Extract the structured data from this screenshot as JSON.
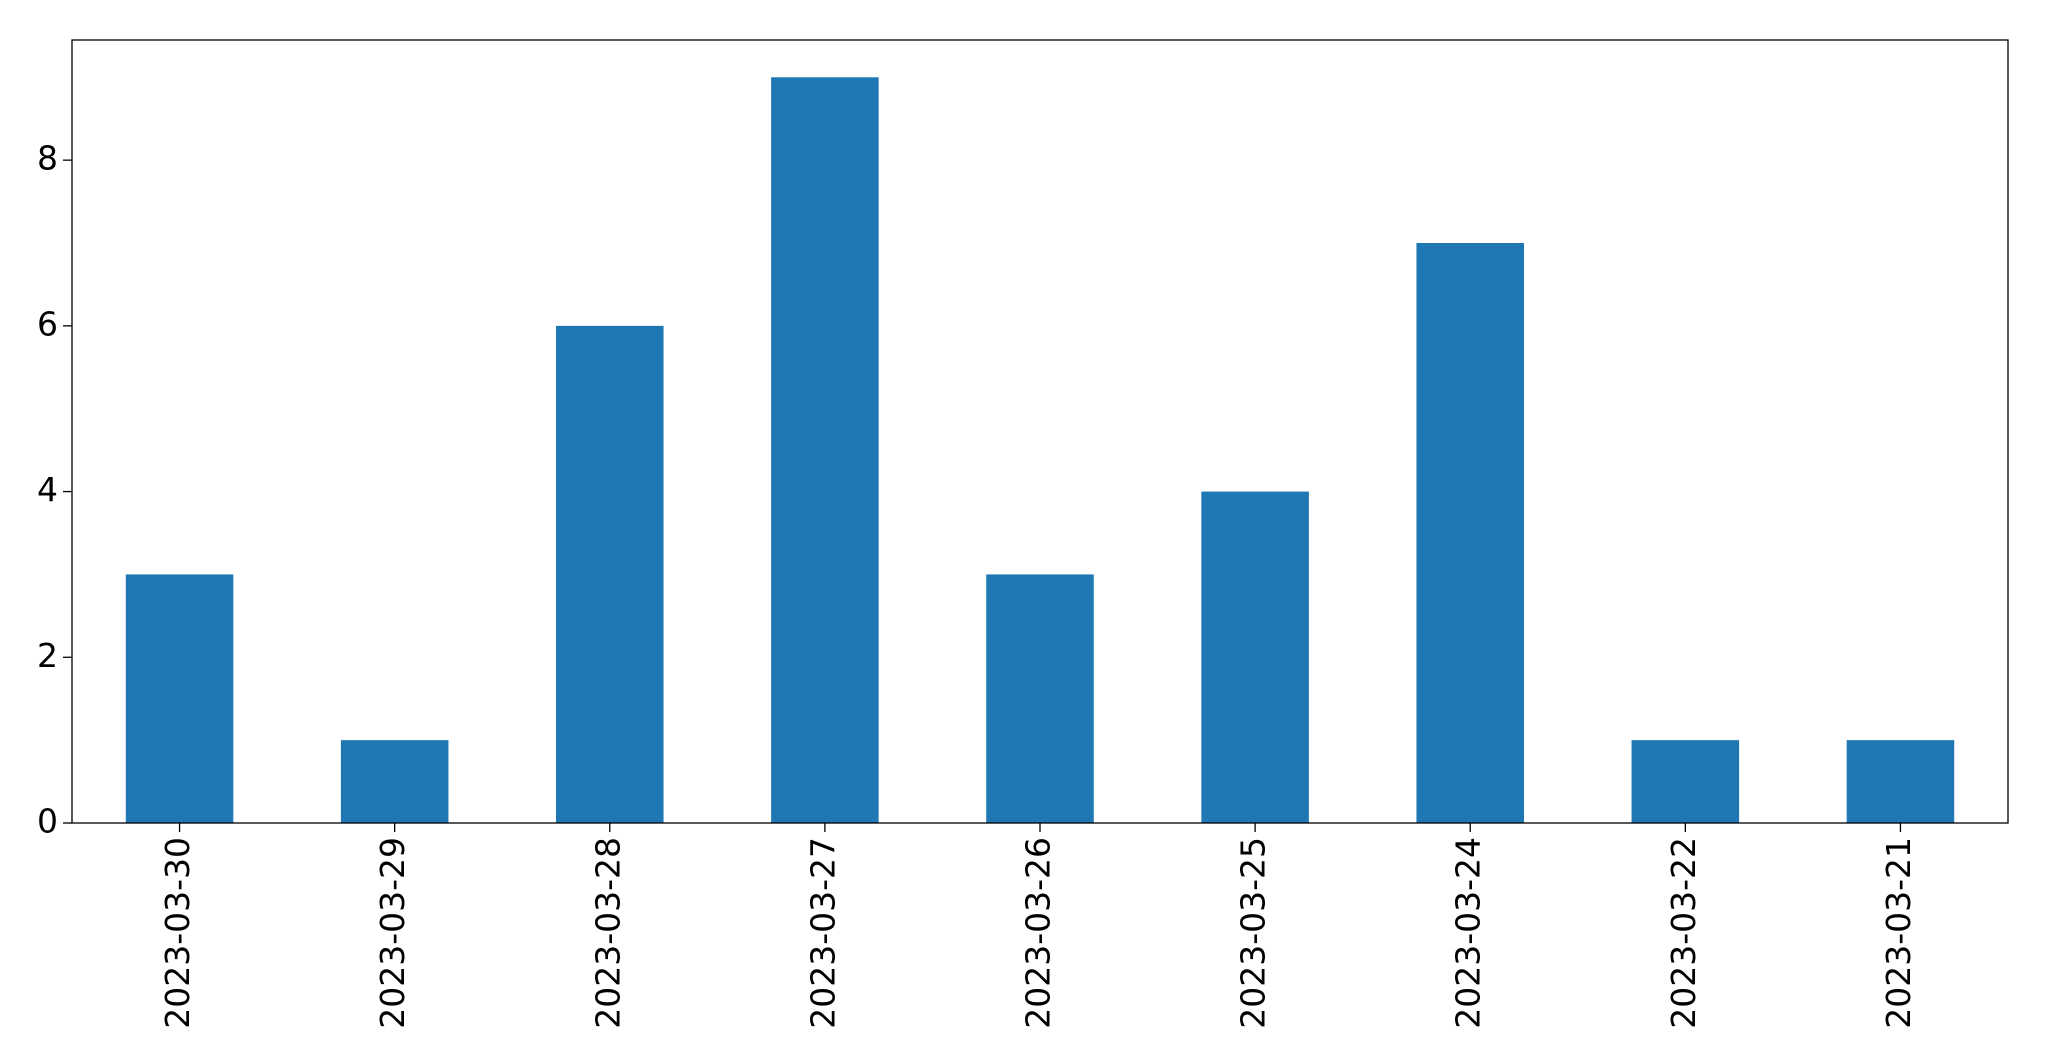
{
  "chart_data": {
    "type": "bar",
    "categories": [
      "2023-03-30",
      "2023-03-29",
      "2023-03-28",
      "2023-03-27",
      "2023-03-26",
      "2023-03-25",
      "2023-03-24",
      "2023-03-22",
      "2023-03-21"
    ],
    "values": [
      3,
      1,
      6,
      9,
      3,
      4,
      7,
      1,
      1
    ],
    "color": "#1f77b4",
    "ylim": [
      0,
      9.45
    ],
    "yticks": [
      0,
      2,
      4,
      6,
      8
    ],
    "grid": false
  }
}
